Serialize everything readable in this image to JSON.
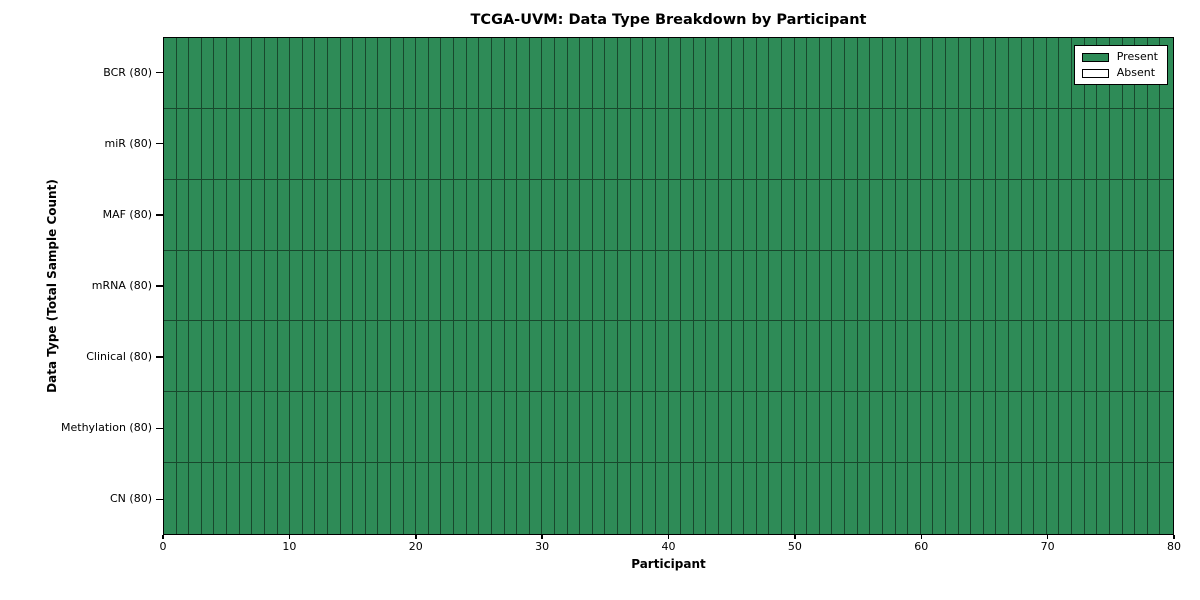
{
  "chart_data": {
    "type": "heatmap",
    "title": "TCGA-UVM: Data Type Breakdown by Participant",
    "xlabel": "Participant",
    "ylabel": "Data Type (Total Sample Count)",
    "xlim": [
      0,
      80
    ],
    "x_ticks": [
      0,
      10,
      20,
      30,
      40,
      50,
      60,
      70,
      80
    ],
    "n_participants": 80,
    "rows": [
      {
        "label": "BCR (80)",
        "total_samples": 80,
        "present_count": 80,
        "absent_count": 0,
        "all_present": true
      },
      {
        "label": "miR (80)",
        "total_samples": 80,
        "present_count": 80,
        "absent_count": 0,
        "all_present": true
      },
      {
        "label": "MAF (80)",
        "total_samples": 80,
        "present_count": 80,
        "absent_count": 0,
        "all_present": true
      },
      {
        "label": "mRNA (80)",
        "total_samples": 80,
        "present_count": 80,
        "absent_count": 0,
        "all_present": true
      },
      {
        "label": "Clinical (80)",
        "total_samples": 80,
        "present_count": 80,
        "absent_count": 0,
        "all_present": true
      },
      {
        "label": "Methylation (80)",
        "total_samples": 80,
        "present_count": 80,
        "absent_count": 0,
        "all_present": true
      },
      {
        "label": "CN (80)",
        "total_samples": 80,
        "present_count": 80,
        "absent_count": 0,
        "all_present": true
      }
    ],
    "cell_value_for_every_participant": "Present",
    "legend": {
      "position": "upper right",
      "entries": [
        {
          "label": "Present",
          "color": "#2e8b57"
        },
        {
          "label": "Absent",
          "color": "#ffffff"
        }
      ]
    },
    "colors": {
      "present": "#2e8b57",
      "absent": "#ffffff",
      "grid_line": "rgba(0,0,0,0.48)",
      "frame": "#000000"
    },
    "grid": true
  }
}
